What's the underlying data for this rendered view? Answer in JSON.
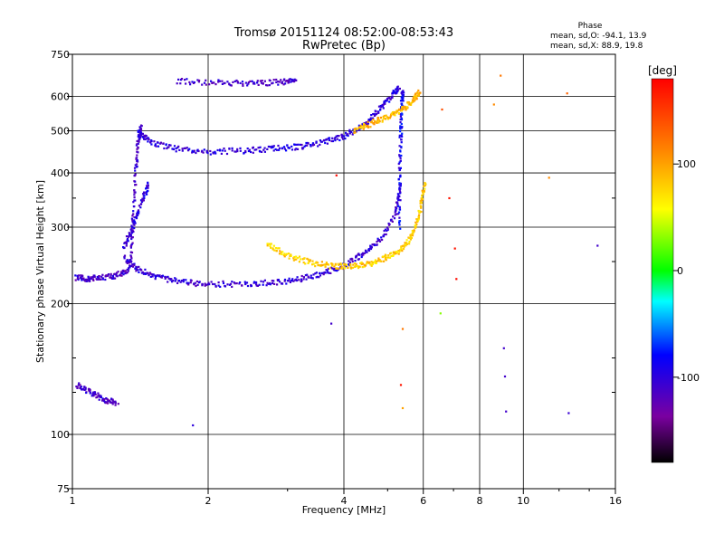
{
  "chart_data": {
    "type": "scatter",
    "title": "Tromsø 20151124 08:52:00-08:53:43",
    "subtitle": "RwPretec (Bp)",
    "phase_box": {
      "heading": "Phase",
      "line_o": "mean, sd,O: -94.1, 13.9",
      "line_x": "mean, sd,X: 88.9, 19.8"
    },
    "xlabel": "Frequency [MHz]",
    "ylabel": "Stationary phase Virtual Height [km]",
    "x_scale": "log",
    "y_scale": "log",
    "xlim": [
      1,
      16
    ],
    "ylim": [
      75,
      750
    ],
    "x_ticks": [
      {
        "value": 1,
        "label": "1"
      },
      {
        "value": 2,
        "label": "2"
      },
      {
        "value": 4,
        "label": "4"
      },
      {
        "value": 6,
        "label": "6"
      },
      {
        "value": 8,
        "label": "8"
      },
      {
        "value": 10,
        "label": "10"
      },
      {
        "value": 16,
        "label": "16"
      }
    ],
    "y_ticks": [
      {
        "value": 75,
        "label": "75"
      },
      {
        "value": 100,
        "label": "100"
      },
      {
        "value": 200,
        "label": "200"
      },
      {
        "value": 300,
        "label": "300"
      },
      {
        "value": 400,
        "label": "400"
      },
      {
        "value": 500,
        "label": "500"
      },
      {
        "value": 600,
        "label": "600"
      },
      {
        "value": 750,
        "label": "750"
      }
    ],
    "grid": true,
    "colorbar": {
      "label": "[deg]",
      "range": [
        -180,
        180
      ],
      "ticks": [
        {
          "value": 100,
          "label": "100"
        },
        {
          "value": 0,
          "label": "0"
        },
        {
          "value": -100,
          "label": "-100"
        }
      ]
    },
    "traces": [
      {
        "freq": [
          1.02,
          1.08,
          1.15,
          1.25,
          1.34,
          1.36,
          1.38,
          1.4,
          1.42
        ],
        "height": [
          230,
          228,
          230,
          232,
          240,
          300,
          400,
          480,
          510
        ],
        "phase": -110
      },
      {
        "freq": [
          1.4,
          1.5,
          1.7,
          2.0,
          2.4,
          2.8,
          3.2,
          3.6,
          4.0,
          4.4,
          4.8,
          5.1,
          5.3
        ],
        "height": [
          500,
          470,
          455,
          448,
          450,
          455,
          460,
          470,
          485,
          515,
          560,
          600,
          630
        ],
        "phase": -100
      },
      {
        "freq": [
          1.3,
          1.4,
          1.55,
          1.75,
          2.0,
          2.4,
          2.8,
          3.2,
          3.6,
          4.0,
          4.4,
          4.8,
          5.2,
          5.35
        ],
        "height": [
          255,
          240,
          230,
          224,
          222,
          222,
          224,
          228,
          235,
          245,
          260,
          280,
          320,
          380
        ],
        "phase": -105
      },
      {
        "freq": [
          5.3,
          5.32,
          5.35,
          5.38,
          5.4
        ],
        "height": [
          300,
          400,
          500,
          580,
          620
        ],
        "phase": -90
      },
      {
        "freq": [
          2.7,
          3.0,
          3.4,
          3.8,
          4.2,
          4.6,
          5.0,
          5.4,
          5.7,
          5.9,
          6.05
        ],
        "height": [
          275,
          258,
          248,
          244,
          244,
          248,
          256,
          268,
          290,
          330,
          380
        ],
        "phase": 80
      },
      {
        "freq": [
          4.2,
          4.6,
          5.0,
          5.4,
          5.7,
          5.9
        ],
        "height": [
          500,
          520,
          540,
          560,
          590,
          620
        ],
        "phase": 90
      },
      {
        "freq": [
          1.3,
          1.36,
          1.42,
          1.48
        ],
        "height": [
          270,
          300,
          340,
          380
        ],
        "phase": -100
      },
      {
        "freq": [
          1.02,
          1.1,
          1.18,
          1.26
        ],
        "height": [
          130,
          125,
          120,
          118
        ],
        "phase": -110
      },
      {
        "freq": [
          1.7,
          2.1,
          2.5,
          2.9,
          3.15
        ],
        "height": [
          650,
          645,
          642,
          648,
          652
        ],
        "phase": -110
      }
    ],
    "scatter_points": [
      {
        "freq": 8.9,
        "height": 670,
        "phase": 120
      },
      {
        "freq": 8.6,
        "height": 575,
        "phase": 110
      },
      {
        "freq": 12.5,
        "height": 610,
        "phase": 130
      },
      {
        "freq": 11.4,
        "height": 390,
        "phase": 110
      },
      {
        "freq": 14.6,
        "height": 272,
        "phase": -110
      },
      {
        "freq": 7.05,
        "height": 268,
        "phase": 170
      },
      {
        "freq": 7.1,
        "height": 228,
        "phase": 175
      },
      {
        "freq": 6.55,
        "height": 190,
        "phase": 30
      },
      {
        "freq": 9.05,
        "height": 158,
        "phase": -110
      },
      {
        "freq": 9.1,
        "height": 136,
        "phase": -110
      },
      {
        "freq": 9.15,
        "height": 113,
        "phase": -110
      },
      {
        "freq": 12.6,
        "height": 112,
        "phase": -105
      },
      {
        "freq": 3.75,
        "height": 180,
        "phase": -110
      },
      {
        "freq": 5.35,
        "height": 130,
        "phase": 170
      },
      {
        "freq": 5.4,
        "height": 115,
        "phase": 100
      },
      {
        "freq": 1.85,
        "height": 105,
        "phase": -100
      },
      {
        "freq": 6.6,
        "height": 560,
        "phase": 140
      },
      {
        "freq": 6.85,
        "height": 350,
        "phase": 170
      },
      {
        "freq": 3.85,
        "height": 395,
        "phase": 175
      },
      {
        "freq": 5.4,
        "height": 175,
        "phase": 120
      }
    ]
  }
}
